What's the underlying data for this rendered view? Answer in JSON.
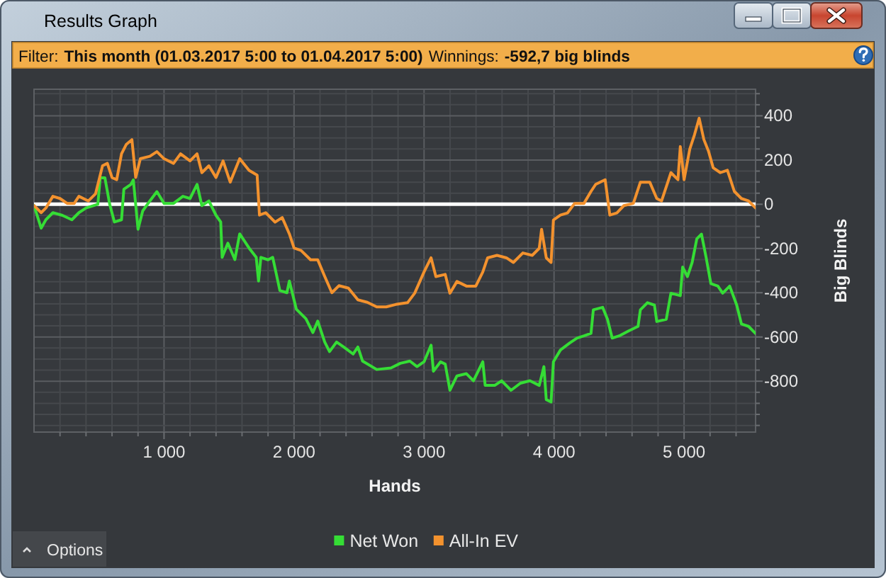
{
  "chart_data": {
    "type": "line",
    "title": "Results Graph",
    "annotations": [
      "Filter:",
      "This month (01.03.2017 5:00 to 01.04.2017 5:00)",
      "Winnings:",
      "-592,7 big blinds",
      "Options"
    ],
    "xlabel": "Hands",
    "ylabel": "Big Blinds",
    "xlim": [
      0,
      5550
    ],
    "ylim": [
      -1030,
      520
    ],
    "xticks": [
      {
        "value": 200,
        "label": null
      },
      {
        "value": 400,
        "label": null
      },
      {
        "value": 600,
        "label": null
      },
      {
        "value": 800,
        "label": null
      },
      {
        "value": 1000,
        "label": "1 000"
      },
      {
        "value": 1200,
        "label": null
      },
      {
        "value": 1400,
        "label": null
      },
      {
        "value": 1600,
        "label": null
      },
      {
        "value": 1800,
        "label": null
      },
      {
        "value": 2000,
        "label": "2 000"
      },
      {
        "value": 2200,
        "label": null
      },
      {
        "value": 2400,
        "label": null
      },
      {
        "value": 2600,
        "label": null
      },
      {
        "value": 2800,
        "label": null
      },
      {
        "value": 3000,
        "label": "3 000"
      },
      {
        "value": 3200,
        "label": null
      },
      {
        "value": 3400,
        "label": null
      },
      {
        "value": 3600,
        "label": null
      },
      {
        "value": 3800,
        "label": null
      },
      {
        "value": 4000,
        "label": "4 000"
      },
      {
        "value": 4200,
        "label": null
      },
      {
        "value": 4400,
        "label": null
      },
      {
        "value": 4600,
        "label": null
      },
      {
        "value": 4800,
        "label": null
      },
      {
        "value": 5000,
        "label": "5 000"
      },
      {
        "value": 5200,
        "label": null
      },
      {
        "value": 5400,
        "label": null
      }
    ],
    "yticks": [
      {
        "value": -1000,
        "label": null
      },
      {
        "value": -950,
        "label": null
      },
      {
        "value": -900,
        "label": null
      },
      {
        "value": -850,
        "label": null
      },
      -800,
      {
        "value": -750,
        "label": null
      },
      {
        "value": -700,
        "label": null
      },
      {
        "value": -650,
        "label": null
      },
      -600,
      {
        "value": -550,
        "label": null
      },
      {
        "value": -500,
        "label": null
      },
      {
        "value": -450,
        "label": null
      },
      -400,
      {
        "value": -350,
        "label": null
      },
      {
        "value": -300,
        "label": null
      },
      {
        "value": -250,
        "label": null
      },
      -200,
      {
        "value": -150,
        "label": null
      },
      {
        "value": -100,
        "label": null
      },
      {
        "value": -50,
        "label": null
      },
      0,
      {
        "value": 50,
        "label": null
      },
      {
        "value": 100,
        "label": null
      },
      {
        "value": 150,
        "label": null
      },
      200,
      {
        "value": 250,
        "label": null
      },
      {
        "value": 300,
        "label": null
      },
      {
        "value": 350,
        "label": null
      },
      400,
      {
        "value": 450,
        "label": null
      },
      {
        "value": 500,
        "label": null
      }
    ],
    "grid": true,
    "legend": "bottom",
    "ref_lines": [
      {
        "axis": "y",
        "value": 0,
        "color": "#ffffff"
      }
    ],
    "series": [
      {
        "name": "Net Won",
        "color": "#35dd35",
        "x": [
          0,
          55,
          91,
          145,
          218,
          291,
          345,
          400,
          491,
          509,
          545,
          582,
          618,
          673,
          691,
          745,
          764,
          800,
          836,
          891,
          945,
          1000,
          1073,
          1145,
          1200,
          1254,
          1291,
          1345,
          1400,
          1436,
          1447,
          1491,
          1545,
          1582,
          1654,
          1709,
          1727,
          1745,
          1800,
          1836,
          1891,
          1945,
          1964,
          2018,
          2091,
          2145,
          2182,
          2236,
          2273,
          2327,
          2382,
          2454,
          2491,
          2527,
          2636,
          2745,
          2818,
          2891,
          2946,
          3000,
          3054,
          3072,
          3127,
          3163,
          3199,
          3253,
          3326,
          3380,
          3452,
          3470,
          3543,
          3597,
          3669,
          3741,
          3814,
          3886,
          3922,
          3940,
          3977,
          3995,
          4049,
          4121,
          4176,
          4230,
          4284,
          4302,
          4374,
          4411,
          4447,
          4501,
          4573,
          4646,
          4664,
          4718,
          4772,
          4790,
          4863,
          4899,
          4971,
          4989,
          5026,
          5062,
          5098,
          5134,
          5170,
          5206,
          5260,
          5297,
          5351,
          5405,
          5441,
          5496,
          5550
        ],
        "values": [
          -6,
          -108,
          -70,
          -38,
          -50,
          -70,
          -38,
          -17,
          0,
          120,
          120,
          0,
          -80,
          -70,
          68,
          90,
          110,
          -113,
          -30,
          15,
          57,
          4,
          4,
          36,
          26,
          90,
          -6,
          15,
          -50,
          -80,
          -240,
          -176,
          -250,
          -134,
          -198,
          -240,
          -347,
          -240,
          -251,
          -240,
          -390,
          -400,
          -347,
          -475,
          -517,
          -580,
          -528,
          -623,
          -666,
          -623,
          -645,
          -677,
          -645,
          -709,
          -747,
          -740,
          -719,
          -709,
          -734,
          -712,
          -637,
          -755,
          -712,
          -723,
          -841,
          -776,
          -766,
          -798,
          -712,
          -819,
          -819,
          -798,
          -841,
          -809,
          -798,
          -819,
          -734,
          -883,
          -894,
          -712,
          -659,
          -627,
          -605,
          -595,
          -584,
          -477,
          -466,
          -520,
          -605,
          -595,
          -573,
          -552,
          -477,
          -445,
          -456,
          -530,
          -520,
          -402,
          -413,
          -284,
          -327,
          -263,
          -156,
          -135,
          -242,
          -359,
          -370,
          -402,
          -370,
          -456,
          -541,
          -552,
          -584
        ]
      },
      {
        "name": "All-In EV",
        "color": "#f3922e",
        "x": [
          0,
          55,
          91,
          145,
          200,
          255,
          309,
          345,
          418,
          473,
          527,
          564,
          600,
          636,
          673,
          709,
          753,
          782,
          818,
          891,
          945,
          1000,
          1073,
          1127,
          1200,
          1254,
          1291,
          1345,
          1400,
          1454,
          1509,
          1582,
          1654,
          1716,
          1734,
          1782,
          1854,
          1909,
          1964,
          2000,
          2054,
          2127,
          2182,
          2236,
          2291,
          2345,
          2418,
          2491,
          2563,
          2636,
          2709,
          2782,
          2873,
          2928,
          3000,
          3054,
          3091,
          3163,
          3199,
          3253,
          3326,
          3398,
          3452,
          3489,
          3561,
          3633,
          3687,
          3760,
          3832,
          3886,
          3904,
          3940,
          3977,
          3995,
          4049,
          4104,
          4158,
          4230,
          4284,
          4320,
          4393,
          4429,
          4483,
          4537,
          4610,
          4664,
          4736,
          4790,
          4827,
          4899,
          4953,
          4971,
          5000,
          5044,
          5080,
          5116,
          5152,
          5188,
          5224,
          5279,
          5333,
          5387,
          5441,
          5496,
          5550
        ],
        "values": [
          -6,
          -38,
          -17,
          36,
          26,
          4,
          4,
          36,
          15,
          47,
          174,
          185,
          121,
          111,
          228,
          270,
          292,
          121,
          206,
          217,
          238,
          206,
          185,
          228,
          196,
          228,
          143,
          174,
          121,
          196,
          100,
          206,
          153,
          132,
          -49,
          -38,
          -81,
          -60,
          -134,
          -198,
          -209,
          -251,
          -251,
          -326,
          -400,
          -368,
          -379,
          -432,
          -443,
          -464,
          -464,
          -453,
          -445,
          -402,
          -306,
          -242,
          -327,
          -317,
          -402,
          -349,
          -370,
          -370,
          -306,
          -242,
          -231,
          -242,
          -263,
          -220,
          -231,
          -199,
          -113,
          -242,
          -263,
          -71,
          -49,
          -39,
          4,
          4,
          58,
          90,
          111,
          -49,
          -39,
          -6,
          4,
          100,
          100,
          26,
          15,
          143,
          111,
          261,
          111,
          250,
          314,
          389,
          293,
          240,
          165,
          143,
          154,
          58,
          26,
          15,
          -17
        ]
      }
    ]
  }
}
